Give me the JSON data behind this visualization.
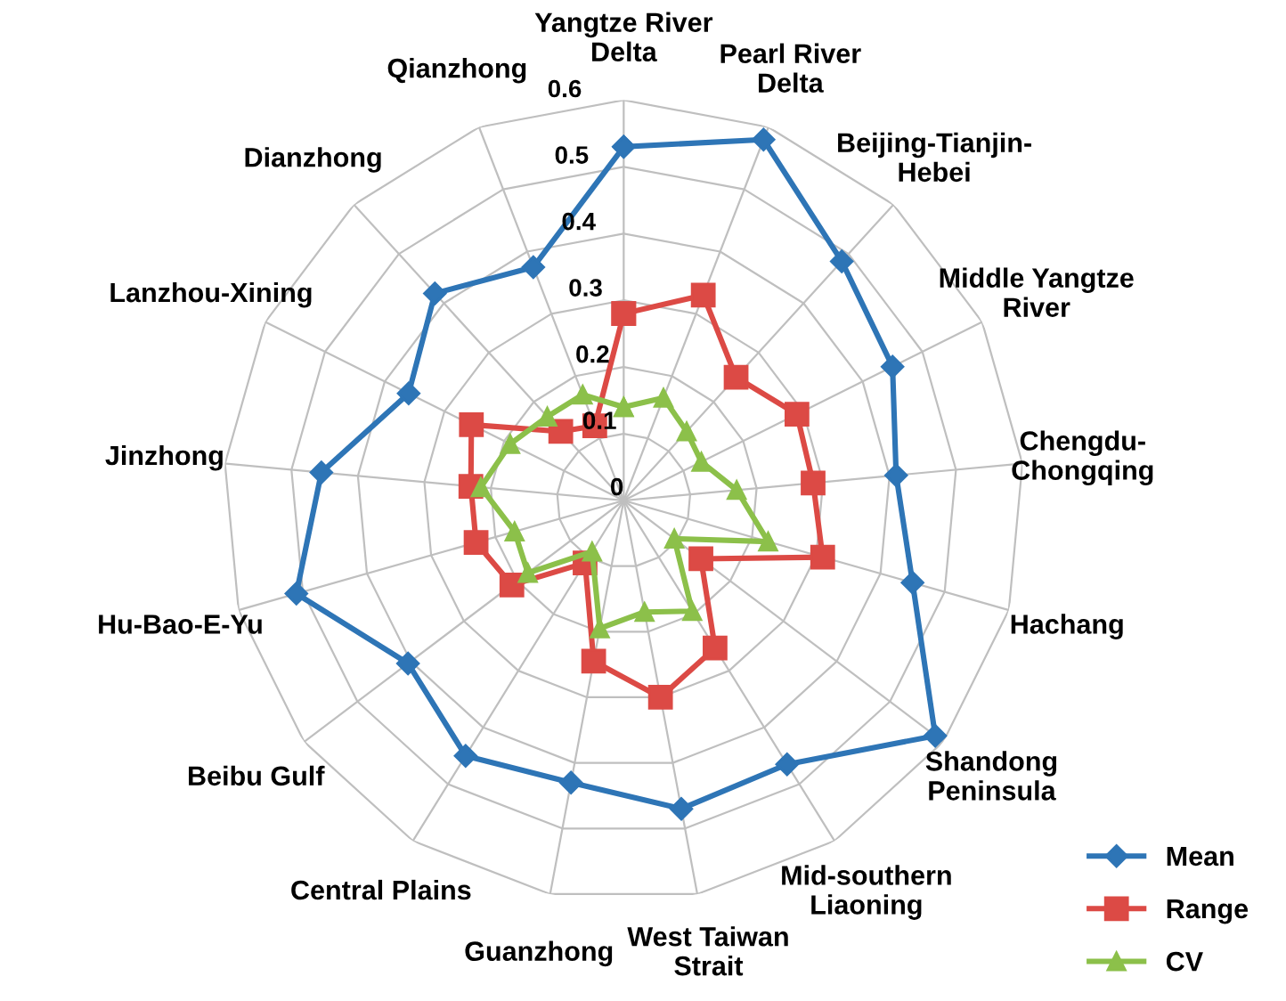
{
  "chart_data": {
    "type": "radar",
    "categories": [
      "Yangtze River\nDelta",
      "Pearl River\nDelta",
      "Beijing-Tianjin-\nHebei",
      "Middle Yangtze\nRiver",
      "Chengdu-\nChongqing",
      "Hachang",
      "Shandong\nPeninsula",
      "Mid-southern\nLiaoning",
      "West Taiwan\nStrait",
      "Guanzhong",
      "Central Plains",
      "Beibu Gulf",
      "Hu-Bao-E-Yu",
      "Jinzhong",
      "Lanzhou-Xining",
      "Dianzhong",
      "Qianzhong"
    ],
    "series": [
      {
        "name": "Mean",
        "color": "#2e75b6",
        "marker": "diamond",
        "values": [
          0.53,
          0.58,
          0.485,
          0.45,
          0.41,
          0.45,
          0.585,
          0.465,
          0.47,
          0.43,
          0.45,
          0.405,
          0.51,
          0.455,
          0.36,
          0.42,
          0.375
        ]
      },
      {
        "name": "Range",
        "color": "#dc4a45",
        "marker": "square",
        "values": [
          0.28,
          0.33,
          0.25,
          0.29,
          0.285,
          0.31,
          0.145,
          0.26,
          0.3,
          0.245,
          0.11,
          0.21,
          0.23,
          0.23,
          0.255,
          0.14,
          0.12
        ]
      },
      {
        "name": "CV",
        "color": "#8cc04a",
        "marker": "triangle",
        "values": [
          0.14,
          0.165,
          0.14,
          0.13,
          0.17,
          0.225,
          0.095,
          0.195,
          0.17,
          0.195,
          0.09,
          0.18,
          0.17,
          0.215,
          0.19,
          0.17,
          0.17
        ]
      }
    ],
    "ylim": [
      0,
      0.6
    ],
    "yticks": [
      0,
      0.1,
      0.2,
      0.3,
      0.4,
      0.5,
      0.6
    ],
    "grid": true,
    "legend": "bottom right"
  }
}
